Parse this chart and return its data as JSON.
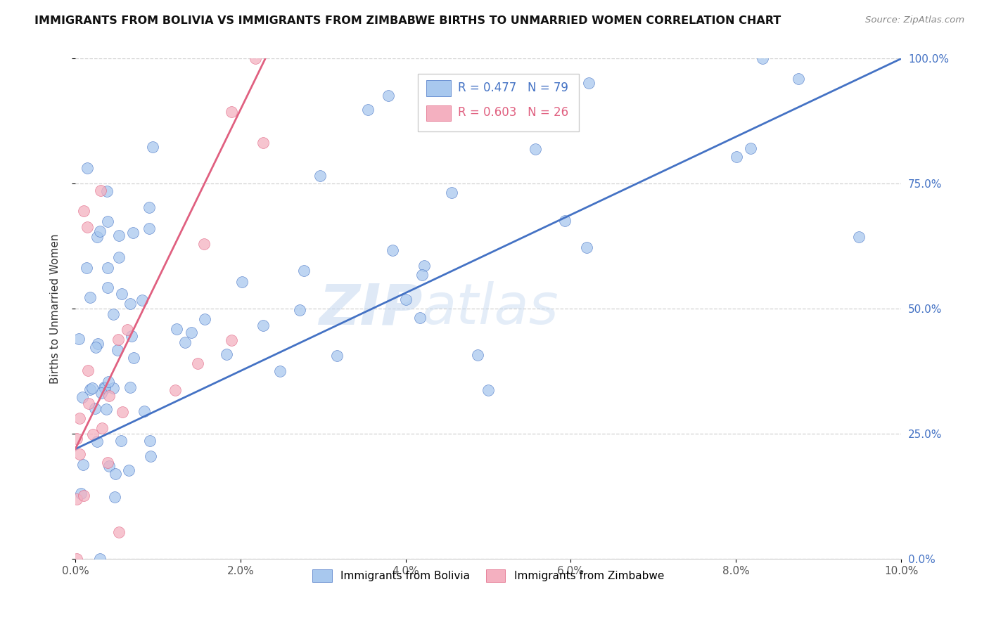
{
  "title": "IMMIGRANTS FROM BOLIVIA VS IMMIGRANTS FROM ZIMBABWE BIRTHS TO UNMARRIED WOMEN CORRELATION CHART",
  "source": "Source: ZipAtlas.com",
  "ylabel": "Births to Unmarried Women",
  "legend_bolivia": "Immigrants from Bolivia",
  "legend_zimbabwe": "Immigrants from Zimbabwe",
  "r_bolivia": 0.477,
  "n_bolivia": 79,
  "r_zimbabwe": 0.603,
  "n_zimbabwe": 26,
  "watermark_zip": "ZIP",
  "watermark_atlas": "atlas",
  "color_bolivia": "#A8C8EE",
  "color_zimbabwe": "#F4B0C0",
  "line_color_bolivia": "#4472C4",
  "line_color_zimbabwe": "#E06080",
  "xmax": 0.1,
  "ymax": 1.0,
  "x_ticks": [
    0.0,
    0.02,
    0.04,
    0.06,
    0.08,
    0.1
  ],
  "x_tick_labels": [
    "0.0%",
    "2.0%",
    "4.0%",
    "6.0%",
    "8.0%",
    "10.0%"
  ],
  "y_ticks": [
    0.0,
    0.25,
    0.5,
    0.75,
    1.0
  ],
  "y_tick_labels": [
    "0.0%",
    "25.0%",
    "50.0%",
    "75.0%",
    "100.0%"
  ],
  "bolivia_line_x": [
    0.0,
    0.1
  ],
  "bolivia_line_y": [
    0.22,
    1.0
  ],
  "zimbabwe_line_x": [
    0.0,
    0.023
  ],
  "zimbabwe_line_y": [
    0.22,
    1.0
  ]
}
